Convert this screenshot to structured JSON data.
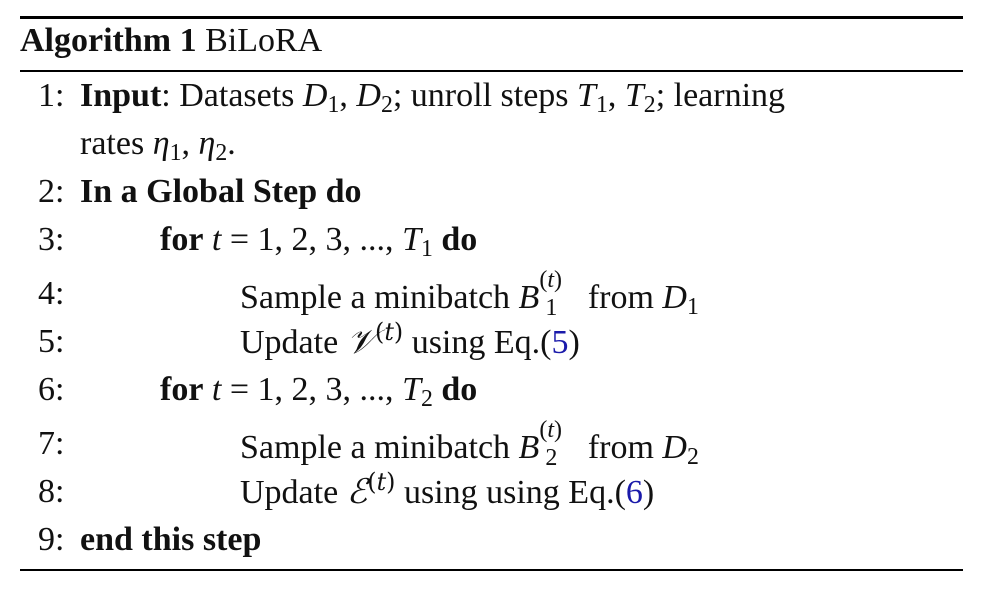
{
  "algorithm": {
    "label": "Algorithm 1",
    "name": "BiLoRA"
  },
  "steps": [
    {
      "num": "1:",
      "keyword": "Input",
      "text_a": ": Datasets ",
      "text_b": "; unroll steps ",
      "text_c": "; learning",
      "cont": "rates "
    },
    {
      "num": "2:",
      "text": "In a Global Step do"
    },
    {
      "num": "3:",
      "kw_for": "for",
      "range": "= 1, 2, 3, ..., ",
      "kw_do": "do"
    },
    {
      "num": "4:",
      "text": "Sample a minibatch ",
      "from": " from "
    },
    {
      "num": "5:",
      "text": "Update ",
      "using": " using Eq.(",
      "ref": "5",
      "close": ")"
    },
    {
      "num": "6:",
      "kw_for": "for",
      "range": "= 1, 2, 3, ..., ",
      "kw_do": "do"
    },
    {
      "num": "7:",
      "text": "Sample a minibatch ",
      "from": " from "
    },
    {
      "num": "8:",
      "text": "Update ",
      "using": " using using Eq.(",
      "ref": "6",
      "close": ")"
    },
    {
      "num": "9:",
      "text": "end this step"
    }
  ]
}
